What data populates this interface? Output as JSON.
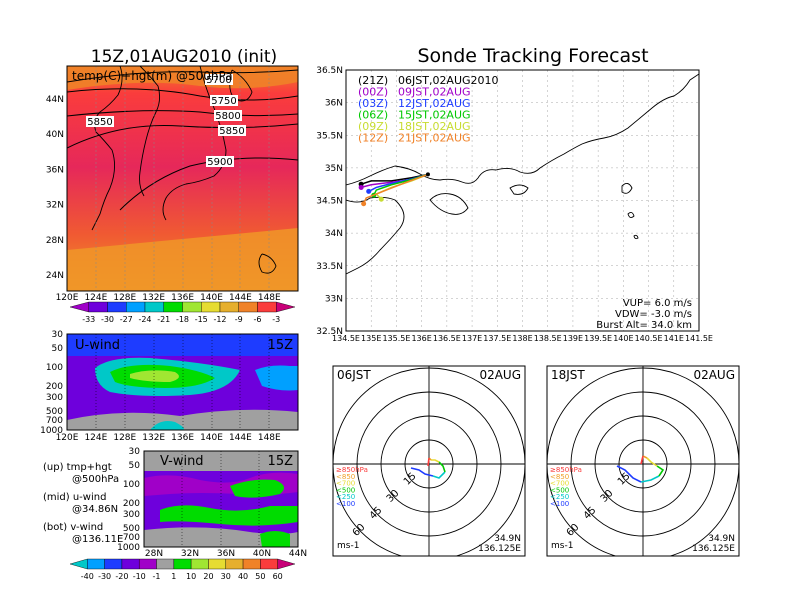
{
  "left": {
    "title": "15Z,01AUG2010 (init)",
    "map": {
      "field_label": "temp(C)+hgt(m) @500hPa",
      "lon_ticks": [
        "120E",
        "124E",
        "128E",
        "132E",
        "136E",
        "140E",
        "144E",
        "148E"
      ],
      "lat_ticks": [
        "44N",
        "40N",
        "36N",
        "32N",
        "28N",
        "24N"
      ],
      "contour_labels": [
        "5700",
        "5750",
        "5800",
        "5850",
        "5850",
        "5900"
      ]
    },
    "temp_colorbar": {
      "labels": [
        "-33",
        "-30",
        "-27",
        "-24",
        "-21",
        "-18",
        "-15",
        "-12",
        "-9",
        "-6",
        "-3"
      ],
      "colors": [
        "#a000c8",
        "#6e00dc",
        "#1e3cff",
        "#00a0ff",
        "#00c8c8",
        "#00dc00",
        "#a0e632",
        "#e6dc32",
        "#e6af2d",
        "#f08228",
        "#fa3c3c",
        "#c80078"
      ]
    },
    "u_panel": {
      "label": "U-wind",
      "time": "15Z",
      "p_ticks": [
        "30",
        "50",
        "100",
        "200",
        "300",
        "500",
        "700",
        "1000"
      ],
      "lon_ticks": [
        "120E",
        "124E",
        "128E",
        "132E",
        "136E",
        "140E",
        "144E",
        "148E"
      ]
    },
    "v_panel": {
      "label": "V-wind",
      "time": "15Z",
      "p_ticks": [
        "30",
        "50",
        "100",
        "200",
        "300",
        "500",
        "700",
        "1000"
      ],
      "lat_ticks": [
        "28N",
        "32N",
        "36N",
        "40N",
        "44N"
      ]
    },
    "notes": [
      {
        "a": "(up) tmp+hgt",
        "b": "@500hPa"
      },
      {
        "a": "(mid) u-wind",
        "b": "@34.86N"
      },
      {
        "a": "(bot) v-wind",
        "b": "@136.11E"
      }
    ],
    "wind_colorbar": {
      "labels": [
        "-40",
        "-30",
        "-20",
        "-10",
        "-1",
        "1",
        "10",
        "20",
        "30",
        "40",
        "50",
        "60"
      ],
      "colors": [
        "#00c8c8",
        "#00a0ff",
        "#1e3cff",
        "#6e00dc",
        "#a000c8",
        "#a0a0a0",
        "#00dc00",
        "#a0e632",
        "#e6dc32",
        "#e6af2d",
        "#f08228",
        "#fa3c3c",
        "#c80078"
      ]
    }
  },
  "right": {
    "title": "Sonde Tracking Forecast",
    "map": {
      "lat_ticks": [
        "36.5N",
        "36N",
        "35.5N",
        "35N",
        "34.5N",
        "34N",
        "33.5N",
        "33N",
        "32.5N"
      ],
      "lon_ticks": [
        "134.5E",
        "135E",
        "135.5E",
        "136E",
        "136.5E",
        "137E",
        "137.5E",
        "138E",
        "138.5E",
        "139E",
        "139.5E",
        "140E",
        "140.5E",
        "141E",
        "141.5E"
      ],
      "legend": [
        {
          "run": "(21Z)",
          "time": "06JST,02AUG2010",
          "color": "#000000"
        },
        {
          "run": "(00Z)",
          "time": "09JST,02AUG",
          "color": "#a000c8"
        },
        {
          "run": "(03Z)",
          "time": "12JST,02AUG",
          "color": "#1e3cff"
        },
        {
          "run": "(06Z)",
          "time": "15JST,02AUG",
          "color": "#00c800"
        },
        {
          "run": "(09Z)",
          "time": "18JST,02AUG",
          "color": "#c8dc32"
        },
        {
          "run": "(12Z)",
          "time": "21JST,02AUG",
          "color": "#f08228"
        }
      ],
      "params": [
        "VUP= 6.0 m/s",
        "VDW= -3.0 m/s",
        "Burst Alt= 34.0 km"
      ]
    },
    "hodographs": [
      {
        "time": "06JST",
        "date": "02AUG",
        "unit": "ms-1",
        "lat": "34.9N",
        "lon": "136.125E",
        "ring_labels": [
          "15",
          "30",
          "45",
          "60"
        ],
        "levels": [
          {
            "label": "≥850hPa",
            "color": "#fa3c3c"
          },
          {
            "label": "<850",
            "color": "#f0a028"
          },
          {
            "label": "<700",
            "color": "#e6dc32"
          },
          {
            "label": "<500",
            "color": "#00c800"
          },
          {
            "label": "<250",
            "color": "#00c8c8"
          },
          {
            "label": "<100",
            "color": "#1e3cff"
          }
        ]
      },
      {
        "time": "18JST",
        "date": "02AUG",
        "unit": "ms-1",
        "lat": "34.9N",
        "lon": "136.125E",
        "ring_labels": [
          "15",
          "30",
          "45",
          "60"
        ],
        "levels": [
          {
            "label": "≥850hPa",
            "color": "#fa3c3c"
          },
          {
            "label": "<850",
            "color": "#f0a028"
          },
          {
            "label": "<700",
            "color": "#e6dc32"
          },
          {
            "label": "<500",
            "color": "#00c800"
          },
          {
            "label": "<250",
            "color": "#00c8c8"
          },
          {
            "label": "<100",
            "color": "#1e3cff"
          }
        ]
      }
    ]
  },
  "chart_data": [
    {
      "type": "heatmap",
      "title": "15Z,01AUG2010 (init)",
      "field": "temp(C)+hgt(m) @500hPa",
      "xlim": [
        120,
        150
      ],
      "ylim": [
        22,
        48
      ],
      "height_contours": [
        5700,
        5750,
        5800,
        5850,
        5900
      ]
    },
    {
      "type": "heatmap",
      "title": "U-wind 15Z",
      "xlim": [
        120,
        150
      ],
      "ylim": [
        1000,
        30
      ],
      "y_log": true
    },
    {
      "type": "heatmap",
      "title": "V-wind 15Z",
      "xlim": [
        28,
        44
      ],
      "ylim": [
        1000,
        30
      ],
      "y_log": true
    },
    {
      "type": "line",
      "title": "Sonde Tracking Forecast",
      "xlim": [
        134.5,
        141.5
      ],
      "ylim": [
        32.5,
        36.5
      ],
      "launch": [
        136.125,
        34.9
      ],
      "series": [
        {
          "name": "(21Z) 06JST,02AUG2010",
          "x": [
            136.125,
            135.8,
            135.4,
            135.0,
            134.8
          ],
          "y": [
            34.9,
            34.85,
            34.8,
            34.8,
            34.75
          ]
        },
        {
          "name": "(00Z) 09JST,02AUG",
          "x": [
            136.125,
            135.8,
            135.4,
            135.0,
            134.8
          ],
          "y": [
            34.9,
            34.82,
            34.78,
            34.74,
            34.7
          ]
        },
        {
          "name": "(03Z) 12JST,02AUG",
          "x": [
            136.125,
            135.8,
            135.4,
            135.1,
            134.95
          ],
          "y": [
            34.9,
            34.83,
            34.76,
            34.7,
            34.64
          ]
        },
        {
          "name": "(06Z) 15JST,02AUG",
          "x": [
            136.125,
            135.8,
            135.4,
            135.1,
            135.05
          ],
          "y": [
            34.9,
            34.82,
            34.74,
            34.66,
            34.58
          ]
        },
        {
          "name": "(09Z) 18JST,02AUG",
          "x": [
            136.125,
            135.8,
            135.4,
            135.1,
            135.2
          ],
          "y": [
            34.9,
            34.8,
            34.7,
            34.6,
            34.52
          ]
        },
        {
          "name": "(12Z) 21JST,02AUG",
          "x": [
            136.125,
            135.7,
            135.3,
            134.9,
            134.85
          ],
          "y": [
            34.9,
            34.78,
            34.66,
            34.54,
            34.45
          ]
        }
      ]
    }
  ]
}
